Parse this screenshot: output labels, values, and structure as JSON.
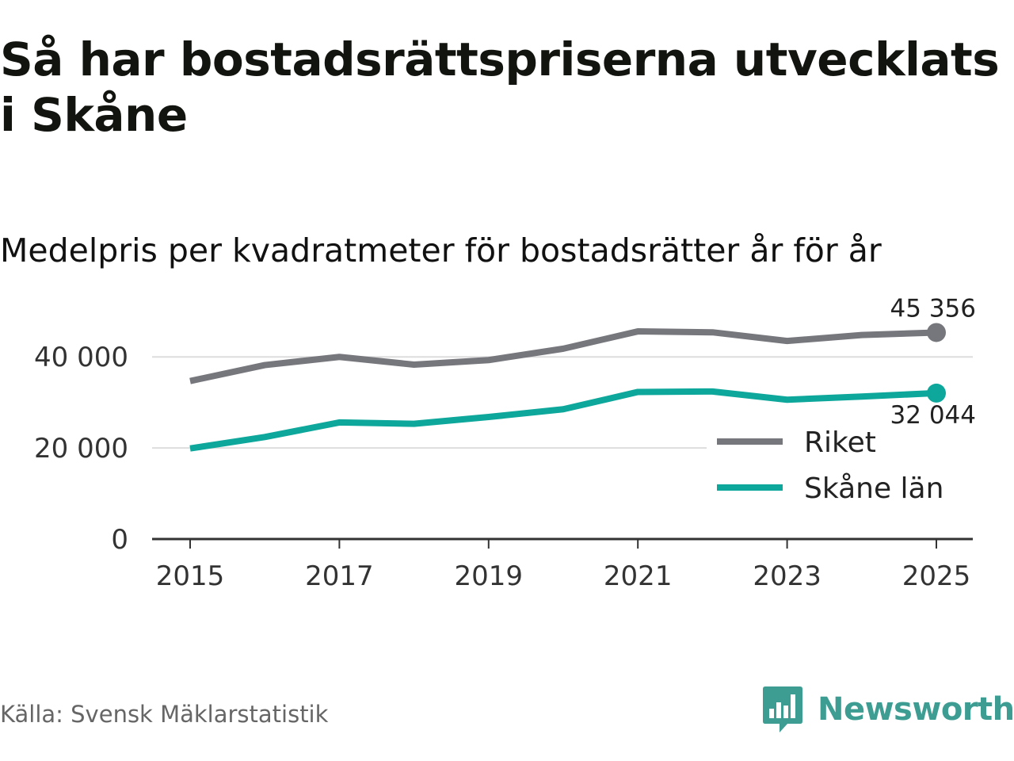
{
  "title": "Så har bostadsrättspriserna utvecklats i Skåne",
  "subtitle": "Medelpris per kvadratmeter för bostadsrätter år för år",
  "source": "Källa: Svensk Mäklarstatistik",
  "brand": "Newsworthy",
  "colors": {
    "riket": "#76767d",
    "skane": "#0ea79b",
    "grid": "#dddddd",
    "axis": "#333333",
    "brand": "#3d9d92"
  },
  "chart_data": {
    "type": "line",
    "title": "Medelpris per kvadratmeter för bostadsrätter år för år",
    "xlabel": "",
    "ylabel": "",
    "x": [
      2015,
      2016,
      2017,
      2018,
      2019,
      2020,
      2021,
      2022,
      2023,
      2024,
      2025
    ],
    "xticks": [
      "2015",
      "2017",
      "2019",
      "2021",
      "2023",
      "2025"
    ],
    "yticks": [
      0,
      20000,
      40000
    ],
    "ytick_labels": [
      "0",
      "20 000",
      "40 000"
    ],
    "ylim": [
      0,
      47000
    ],
    "grid": true,
    "legend_position": "bottom-right",
    "series": [
      {
        "name": "Riket",
        "color": "#76767d",
        "values": [
          34700,
          38200,
          40000,
          38300,
          39300,
          41800,
          45600,
          45400,
          43500,
          44800,
          45356
        ],
        "end_label": "45 356"
      },
      {
        "name": "Skåne län",
        "color": "#0ea79b",
        "values": [
          19900,
          22400,
          25600,
          25300,
          26800,
          28500,
          32300,
          32400,
          30600,
          31300,
          32044
        ],
        "end_label": "32 044"
      }
    ]
  }
}
